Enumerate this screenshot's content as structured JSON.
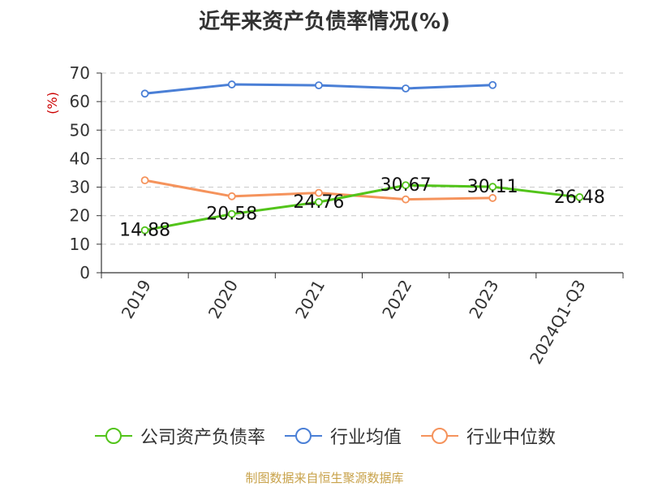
{
  "chart_data": {
    "type": "line",
    "title": "近年来资产负债率情况(%)",
    "ylabel": "(%)",
    "xlabel": "",
    "ylim": [
      0,
      70
    ],
    "yticks": [
      0,
      10,
      20,
      30,
      40,
      50,
      60,
      70
    ],
    "grid": true,
    "legend_position": "bottom",
    "categories": [
      "2019",
      "2020",
      "2021",
      "2022",
      "2023",
      "2024Q1-Q3"
    ],
    "series": [
      {
        "name": "公司资产负债率",
        "color": "#52c41a",
        "values": [
          14.88,
          20.58,
          24.76,
          30.67,
          30.11,
          26.48
        ],
        "labels": [
          "14.88",
          "20.58",
          "24.76",
          "30.67",
          "30.11",
          "26.48"
        ]
      },
      {
        "name": "行业均值",
        "color": "#4a7fd6",
        "values": [
          62.8,
          66.0,
          65.7,
          64.6,
          65.8,
          null
        ]
      },
      {
        "name": "行业中位数",
        "color": "#f5935c",
        "values": [
          32.4,
          26.8,
          28.0,
          25.7,
          26.2,
          null
        ]
      }
    ]
  },
  "footer": {
    "source": "制图数据来自恒生聚源数据库"
  }
}
